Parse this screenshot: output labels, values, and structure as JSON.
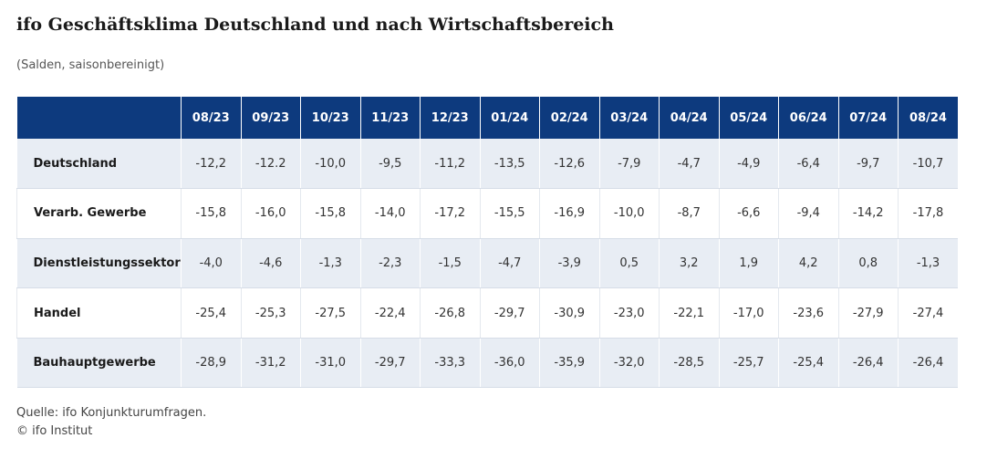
{
  "title": "ifo Geschäftsklima Deutschland und nach Wirtschaftsbereich",
  "subtitle": "(Salden, saisonbereinigt)",
  "source": "Quelle: ifo Konjunkturumfragen.",
  "copyright": "© ifo Institut",
  "colors": {
    "header_bg": "#0d3a7e",
    "header_text": "#ffffff",
    "stripe_bg": "#e8edf4"
  },
  "chart_data": {
    "type": "table",
    "title": "ifo Geschäftsklima Deutschland und nach Wirtschaftsbereich",
    "subtitle": "(Salden, saisonbereinigt)",
    "columns": [
      "08/23",
      "09/23",
      "10/23",
      "11/23",
      "12/23",
      "01/24",
      "02/24",
      "03/24",
      "04/24",
      "05/24",
      "06/24",
      "07/24",
      "08/24"
    ],
    "rows": [
      {
        "label": "Deutschland",
        "values": [
          "-12,2",
          "-12.2",
          "-10,0",
          "-9,5",
          "-11,2",
          "-13,5",
          "-12,6",
          "-7,9",
          "-4,7",
          "-4,9",
          "-6,4",
          "-9,7",
          "-10,7"
        ]
      },
      {
        "label": "Verarb. Gewerbe",
        "values": [
          "-15,8",
          "-16,0",
          "-15,8",
          "-14,0",
          "-17,2",
          "-15,5",
          "-16,9",
          "-10,0",
          "-8,7",
          "-6,6",
          "-9,4",
          "-14,2",
          "-17,8"
        ]
      },
      {
        "label": "Dienstleistungssektor",
        "values": [
          "-4,0",
          "-4,6",
          "-1,3",
          "-2,3",
          "-1,5",
          "-4,7",
          "-3,9",
          "0,5",
          "3,2",
          "1,9",
          "4,2",
          "0,8",
          "-1,3"
        ]
      },
      {
        "label": "Handel",
        "values": [
          "-25,4",
          "-25,3",
          "-27,5",
          "-22,4",
          "-26,8",
          "-29,7",
          "-30,9",
          "-23,0",
          "-22,1",
          "-17,0",
          "-23,6",
          "-27,9",
          "-27,4"
        ]
      },
      {
        "label": "Bauhauptgewerbe",
        "values": [
          "-28,9",
          "-31,2",
          "-31,0",
          "-29,7",
          "-33,3",
          "-36,0",
          "-35,9",
          "-32,0",
          "-28,5",
          "-25,7",
          "-25,4",
          "-26,4",
          "-26,4"
        ]
      }
    ]
  }
}
